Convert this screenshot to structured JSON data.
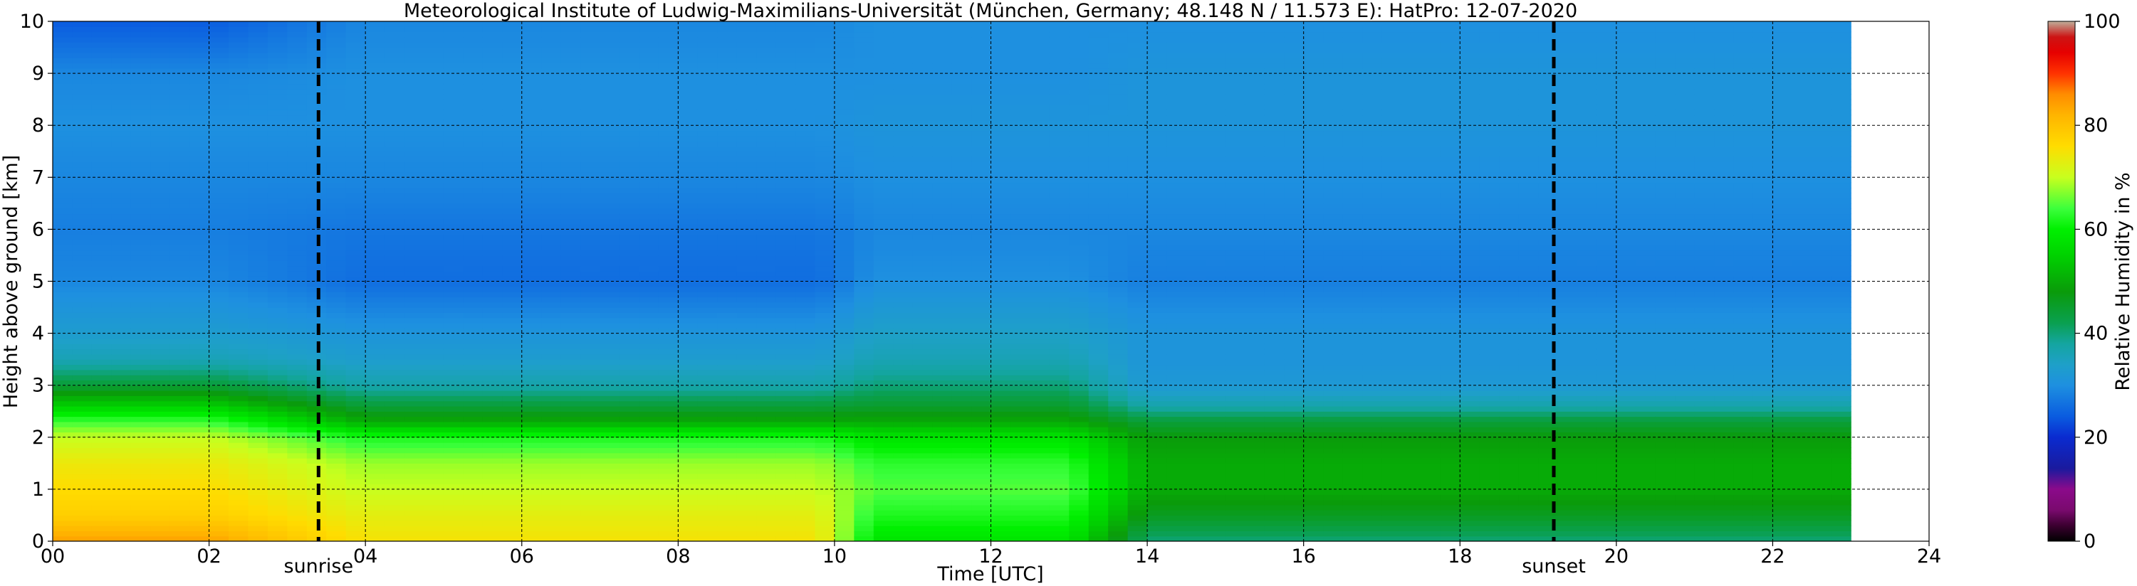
{
  "chart_data": {
    "type": "heatmap",
    "title": "Meteorological Institute of Ludwig-Maximilians-Universität (München, Germany; 48.148 N / 11.573 E):    HatPro: 12-07-2020",
    "xlabel": "Time [UTC]",
    "ylabel": "Height above ground [km]",
    "xlim": [
      0,
      24
    ],
    "ylim": [
      0,
      10
    ],
    "x_tick_labels": [
      "00",
      "02",
      "04",
      "06",
      "08",
      "10",
      "12",
      "14",
      "16",
      "18",
      "20",
      "22",
      "24"
    ],
    "y_tick_labels": [
      "0",
      "1",
      "2",
      "3",
      "4",
      "5",
      "6",
      "7",
      "8",
      "9",
      "10"
    ],
    "grid": true,
    "data_end_time": 23.0,
    "sun_events": [
      {
        "label": "sunrise",
        "time": 3.4
      },
      {
        "label": "sunset",
        "time": 19.2
      }
    ],
    "colorbar": {
      "label": "Relative Humidity in %",
      "ticks": [
        "0",
        "20",
        "40",
        "60",
        "80",
        "100"
      ],
      "min": 0,
      "max": 100,
      "colors": [
        [
          0,
          "#000000"
        ],
        [
          3,
          "#3b0030"
        ],
        [
          6,
          "#7a0a6e"
        ],
        [
          10,
          "#8b0a8b"
        ],
        [
          14,
          "#1a1a9e"
        ],
        [
          20,
          "#0a2bd0"
        ],
        [
          24,
          "#0a5ce0"
        ],
        [
          30,
          "#1e90e0"
        ],
        [
          34,
          "#1ea0c8"
        ],
        [
          38,
          "#14a5a0"
        ],
        [
          42,
          "#0aa050"
        ],
        [
          48,
          "#0a9b0a"
        ],
        [
          55,
          "#00d200"
        ],
        [
          60,
          "#00f000"
        ],
        [
          64,
          "#3cff3c"
        ],
        [
          70,
          "#c8ff1e"
        ],
        [
          76,
          "#ffdc00"
        ],
        [
          82,
          "#ffb400"
        ],
        [
          86,
          "#ff8c00"
        ],
        [
          90,
          "#ff3200"
        ],
        [
          94,
          "#e60000"
        ],
        [
          97,
          "#cc1414"
        ],
        [
          100,
          "#bfae9a"
        ]
      ]
    },
    "rh_profile_by_height": {
      "heights_km": [
        0.0,
        0.5,
        1.0,
        1.5,
        2.0,
        2.3,
        2.6,
        3.0,
        3.5,
        4.0,
        5.0,
        6.0,
        7.0,
        8.0,
        9.0,
        10.0
      ],
      "morning_00_02": [
        84,
        78,
        76,
        74,
        70,
        64,
        55,
        44,
        36,
        33,
        29,
        28,
        29,
        30,
        29,
        24
      ],
      "late_morning_04_10": [
        75,
        73,
        70,
        68,
        62,
        50,
        44,
        37,
        33,
        31,
        26,
        27,
        29,
        30,
        30,
        29
      ],
      "noon_10_13": [
        58,
        62,
        65,
        63,
        58,
        50,
        45,
        40,
        36,
        34,
        30,
        29,
        30,
        31,
        30,
        30
      ],
      "afternoon_14_23": [
        40,
        46,
        50,
        50,
        48,
        44,
        37,
        32,
        31,
        31,
        28,
        29,
        30,
        31,
        31,
        30
      ]
    }
  }
}
